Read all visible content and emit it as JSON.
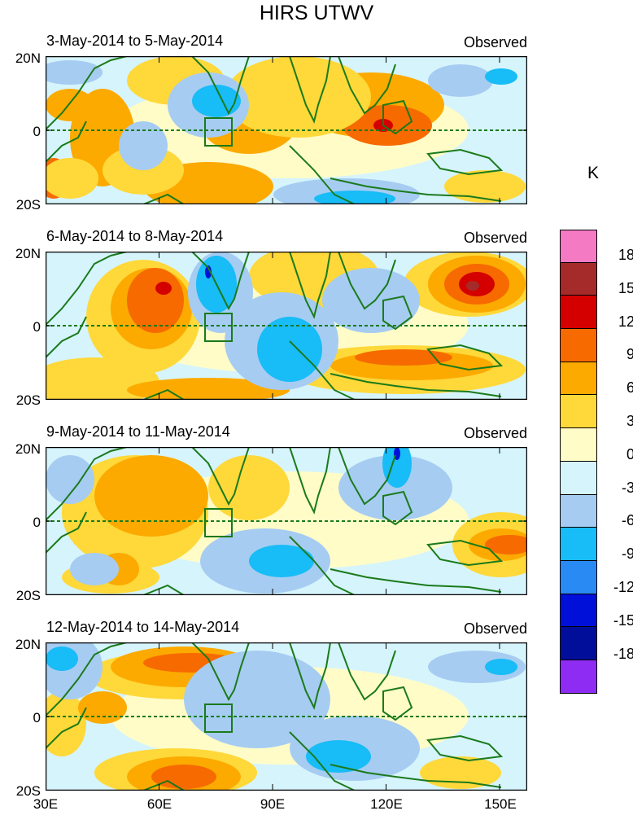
{
  "title": "HIRS UTWV",
  "unit": "K",
  "panels": [
    {
      "title": "3-May-2014 to 5-May-2014",
      "tag": "Observed"
    },
    {
      "title": "6-May-2014 to 8-May-2014",
      "tag": "Observed"
    },
    {
      "title": "9-May-2014 to 11-May-2014",
      "tag": "Observed"
    },
    {
      "title": "12-May-2014 to 14-May-2014",
      "tag": "Observed"
    }
  ],
  "lat_labels": [
    "20N",
    "0",
    "20S"
  ],
  "lon_labels": [
    "30E",
    "60E",
    "90E",
    "120E",
    "150E"
  ],
  "colorbar": {
    "levels": [
      "18",
      "15",
      "12",
      "9",
      "6",
      "3",
      "0",
      "-3",
      "-6",
      "-9",
      "-12",
      "-15",
      "-18"
    ],
    "colors": [
      "#f47ac4",
      "#a52a2a",
      "#d40000",
      "#f66a00",
      "#fcaa00",
      "#ffd83a",
      "#fffcc8",
      "#d6f4fc",
      "#a6ccf2",
      "#18bcf6",
      "#2a8af4",
      "#0010d8",
      "#000e9a",
      "#8e2cf4"
    ]
  },
  "colors": {
    "coast": "#1b7a1b",
    "dashed_equator": "#1b7a1b"
  }
}
